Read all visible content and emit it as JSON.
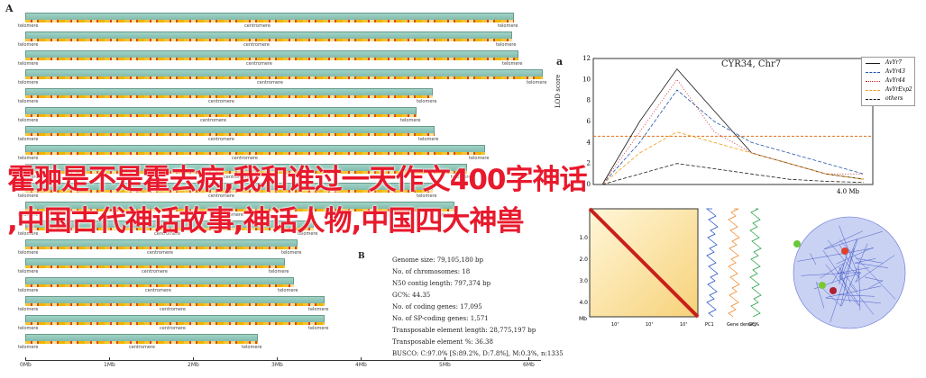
{
  "panel_A_label": "A",
  "panel_B_label": "B",
  "panel_a_label": "a",
  "centromere_label": "centromere",
  "telomere_label": "telomere",
  "x_axis_ticks": [
    "0Mb",
    "1Mb",
    "2Mb",
    "3Mb",
    "4Mb",
    "5Mb",
    "6Mb"
  ],
  "chrom_count": 18,
  "genome_stats": [
    "Genome size: 79,105,180 bp",
    "No. of chromosomes: 18",
    "N50 contig length: 797,374 bp",
    "GC%: 44.35",
    "No. of coding genes: 17,095",
    "No. of SP-coding genes: 1,571",
    "Transposable element length: 28,775,197 bp",
    "Transposable element %: 36.38",
    "BUSCO: C:97.0% [S:89.2%, D:7.8%], M:0.3%, n:1335"
  ],
  "overlay_line1": "霍翀是不是霍去病,我和谁过一天作文400字神话",
  "overlay_line2": ",中国古代神话故事,神话人物,中国四大神兽",
  "lod_title": "CYR34, Chr7",
  "lod_ylabel": "LOD score",
  "lod_xtick": "4.0 Mb",
  "lod_yticks": [
    "12",
    "10",
    "8",
    "6",
    "4",
    "2",
    "0"
  ],
  "lod_threshold": 4.6,
  "legend": [
    {
      "label": "AvYr7",
      "color": "#1a1a1a",
      "style": "solid"
    },
    {
      "label": "AvYr43",
      "color": "#2255aa",
      "style": "dashed"
    },
    {
      "label": "AvYr44",
      "color": "#cc2222",
      "style": "dotted"
    },
    {
      "label": "AvYrExp2",
      "color": "#f0a020",
      "style": "dashed"
    },
    {
      "label": "others",
      "color": "#1a1a1a",
      "style": "dashed"
    }
  ],
  "hic_yticks": [
    "1.0",
    "2.0",
    "3.0",
    "4.0"
  ],
  "hic_xticks": [
    "10⁷",
    "10⁷",
    "10⁷"
  ],
  "hic_col_labels": [
    "PC1",
    "Gene density",
    "GC%"
  ],
  "hic_unit": "Mb",
  "chart_data": {
    "type": "line",
    "title": "CYR34, Chr7",
    "ylabel": "LOD score",
    "ylim": [
      0,
      12
    ],
    "series": [
      {
        "name": "AvYr7",
        "values": [
          0,
          6,
          11,
          7,
          3,
          2,
          1,
          0.5
        ]
      },
      {
        "name": "AvYr43",
        "values": [
          0,
          4,
          9,
          6,
          4,
          3,
          2,
          1
        ]
      },
      {
        "name": "AvYr44",
        "values": [
          0,
          5,
          10,
          5,
          3,
          2,
          1,
          1
        ]
      },
      {
        "name": "AvYrExp2",
        "values": [
          0,
          3,
          5,
          4,
          3,
          2,
          1,
          0.5
        ]
      },
      {
        "name": "others",
        "values": [
          0,
          1,
          2,
          1.5,
          1,
          0.5,
          0.3,
          0.2
        ]
      }
    ]
  }
}
